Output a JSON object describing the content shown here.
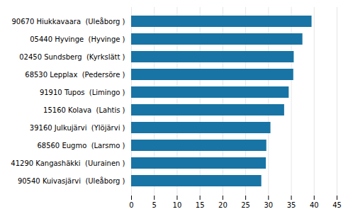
{
  "chart_data": {
    "type": "bar",
    "orientation": "horizontal",
    "categories": [
      "90540 Kuivasjärvi  (Uleåborg )",
      "41290 Kangashäkki  (Uurainen )",
      "68560 Eugmo  (Larsmo )",
      "39160 Julkujärvi  (Ylöjärvi )",
      "15160 Kolava  (Lahtis )",
      "91910 Tupos  (Limingo )",
      "68530 Lepplax  (Pedersöre )",
      "02450 Sundsberg  (Kyrkslätt )",
      "05440 Hyvinge  (Hyvinge )",
      "90670 Hiukkavaara  (Uleåborg )"
    ],
    "values": [
      28.5,
      29.5,
      29.6,
      30.5,
      33.5,
      34.5,
      35.5,
      35.6,
      37.5,
      39.5
    ],
    "color": "#1874a4",
    "xlim": [
      0,
      45
    ],
    "xticks": [
      0,
      5,
      10,
      15,
      20,
      25,
      30,
      35,
      40,
      45
    ],
    "grid": true
  }
}
